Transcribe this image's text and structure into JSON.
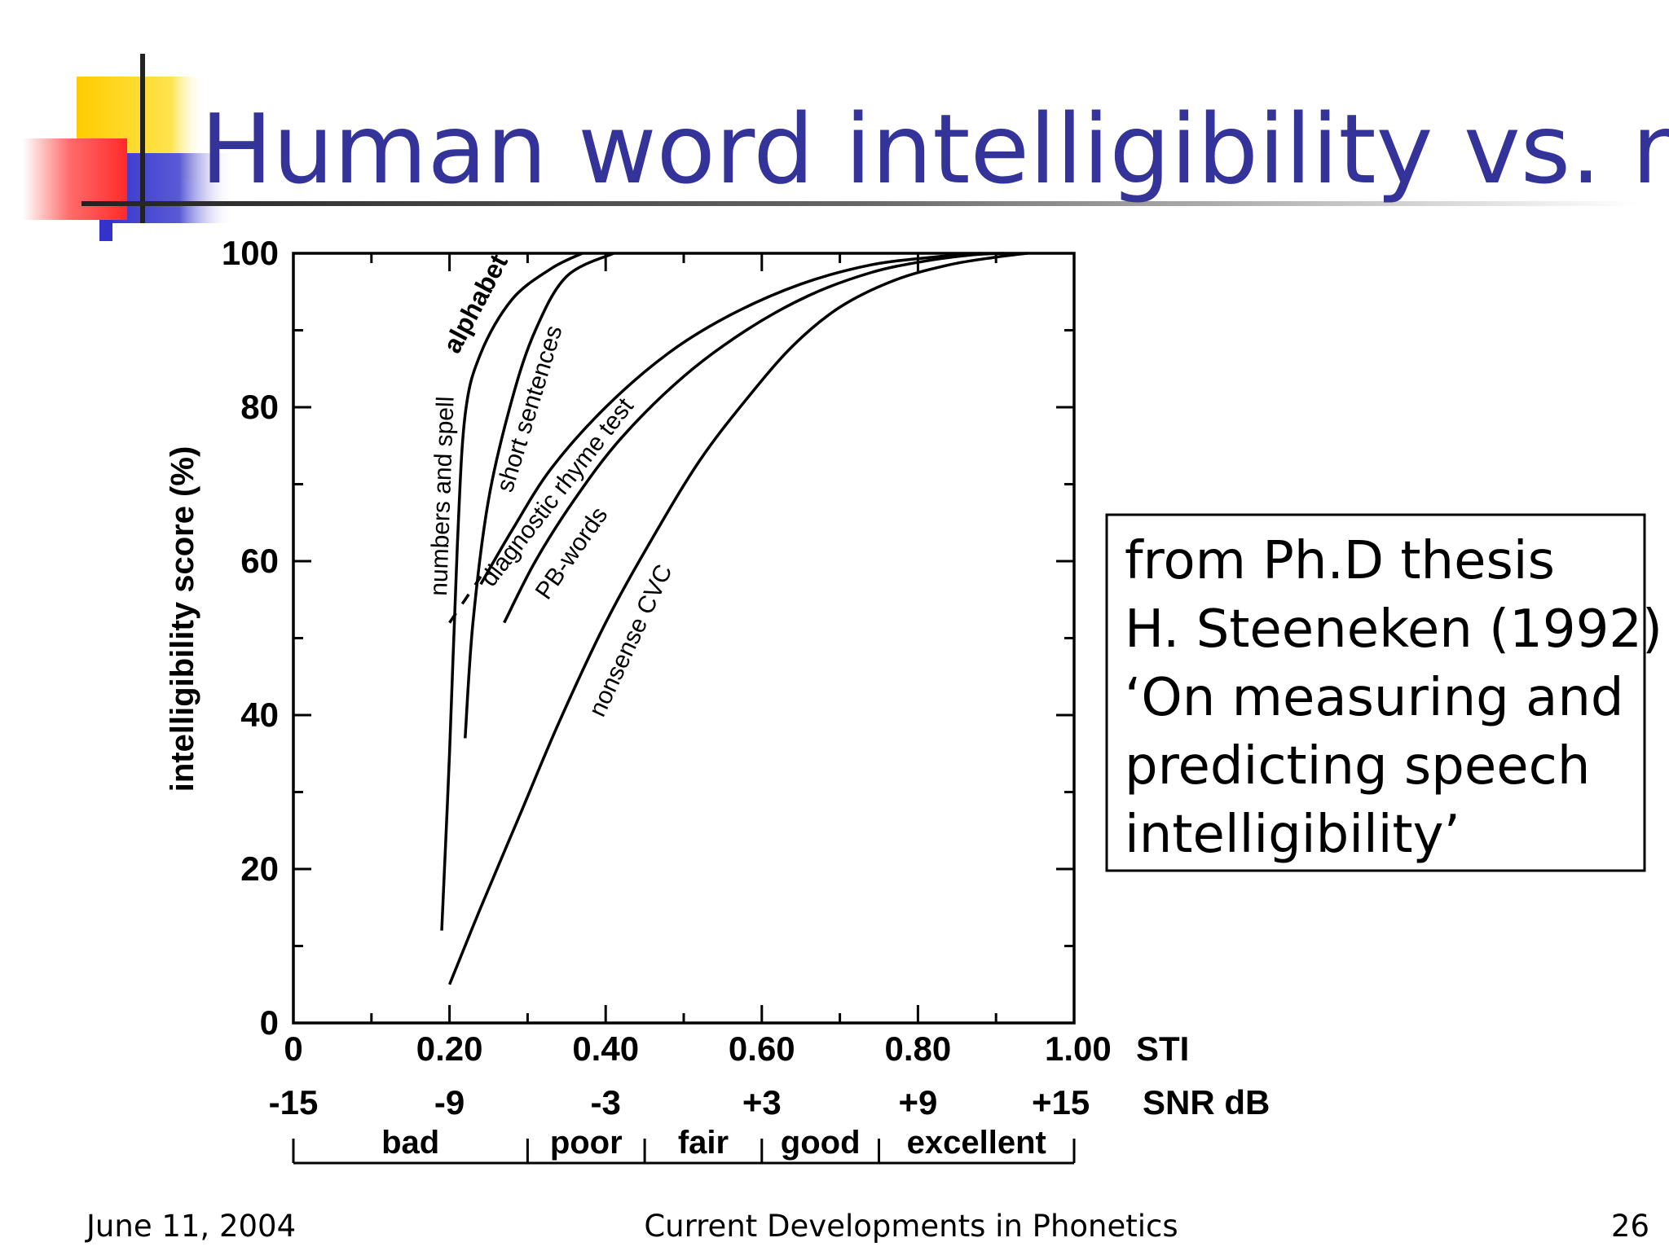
{
  "slide": {
    "title": "Human word intelligibility vs. noise",
    "note_lines": [
      "from Ph.D thesis",
      "H. Steeneken (1992)",
      "‘On measuring and",
      "predicting speech",
      "intelligibility’"
    ],
    "footer": {
      "date": "June 11, 2004",
      "course": "Current Developments in Phonetics",
      "page": "26"
    },
    "colors": {
      "title": "#333399",
      "deco_yellow": "#ffcc00",
      "deco_red": "#ff3333",
      "deco_blue": "#3333cc"
    }
  },
  "chart_data": {
    "type": "line",
    "title": "",
    "ylabel": "intelligibility score (%)",
    "ylim": [
      0,
      100
    ],
    "xlim": [
      0,
      1
    ],
    "y_ticks": [
      "0",
      "20",
      "40",
      "60",
      "80",
      "100"
    ],
    "x_ticks": [
      "0",
      "0.20",
      "0.40",
      "0.60",
      "0.80",
      "1.00"
    ],
    "x_unit": "STI",
    "snr_ticks": [
      "-15",
      "-9",
      "-3",
      "+3",
      "+9",
      "+15"
    ],
    "snr_unit": "SNR dB",
    "ratings": [
      {
        "label": "bad",
        "from": 0,
        "to": 0.3
      },
      {
        "label": "poor",
        "from": 0.3,
        "to": 0.45
      },
      {
        "label": "fair",
        "from": 0.45,
        "to": 0.6
      },
      {
        "label": "good",
        "from": 0.6,
        "to": 0.75
      },
      {
        "label": "excellent",
        "from": 0.75,
        "to": 1.0
      }
    ],
    "series": [
      {
        "name": "numbers and spell",
        "label_prefix": "numbers and spell",
        "label_bold": "alphabet",
        "x": [
          0.19,
          0.2,
          0.21,
          0.22,
          0.24,
          0.28,
          0.33,
          0.37
        ],
        "y": [
          12,
          35,
          62,
          79,
          87,
          94,
          98,
          100
        ]
      },
      {
        "name": "numbers and spell (dashed)",
        "dashed": true,
        "x": [
          0.2,
          0.24
        ],
        "y": [
          52,
          58
        ]
      },
      {
        "name": "short sentences",
        "x": [
          0.22,
          0.23,
          0.25,
          0.28,
          0.31,
          0.35,
          0.41
        ],
        "y": [
          37,
          52,
          68,
          81,
          90,
          97,
          100
        ]
      },
      {
        "name": "diagnostic rhyme test",
        "x": [
          0.24,
          0.28,
          0.33,
          0.4,
          0.48,
          0.56,
          0.65,
          0.74,
          0.82,
          0.88
        ],
        "y": [
          57,
          64,
          72,
          80,
          87,
          92,
          96,
          98.5,
          99.5,
          100
        ]
      },
      {
        "name": "PB-words",
        "x": [
          0.27,
          0.31,
          0.36,
          0.42,
          0.5,
          0.58,
          0.66,
          0.74,
          0.81,
          0.87,
          0.91
        ],
        "y": [
          52,
          60,
          68,
          76,
          84,
          90,
          94.5,
          97.5,
          99,
          99.8,
          100
        ]
      },
      {
        "name": "nonsense CVC",
        "x": [
          0.2,
          0.24,
          0.29,
          0.34,
          0.4,
          0.46,
          0.52,
          0.58,
          0.64,
          0.7,
          0.77,
          0.84,
          0.9,
          0.94
        ],
        "y": [
          5,
          15,
          27,
          39,
          52,
          63,
          73,
          81,
          88,
          93,
          96.5,
          98.5,
          99.5,
          100
        ]
      }
    ]
  }
}
